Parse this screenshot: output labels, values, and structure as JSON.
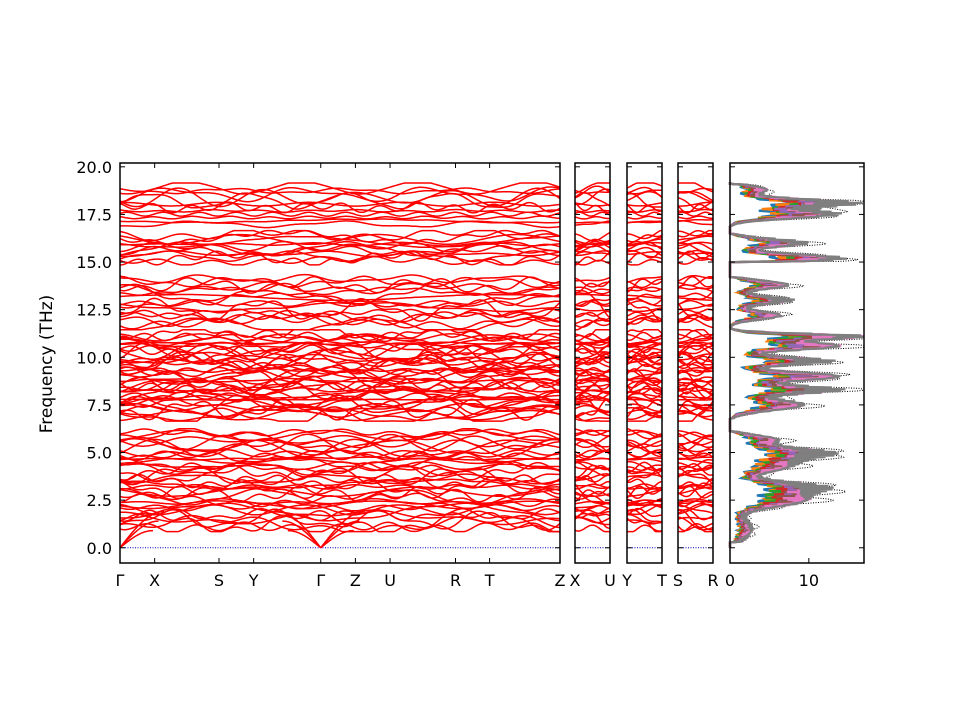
{
  "chart_data": {
    "type": "line",
    "ylabel": "Frequency (THz)",
    "ylim": [
      -0.8,
      20.2
    ],
    "yticks": [
      "0.0",
      "2.5",
      "5.0",
      "7.5",
      "10.0",
      "12.5",
      "15.0",
      "17.5",
      "20.0"
    ],
    "ytick_values": [
      0.0,
      2.5,
      5.0,
      7.5,
      10.0,
      12.5,
      15.0,
      17.5,
      20.0
    ],
    "colors": {
      "bands": "#ff0000",
      "zero_line": "#0000cc",
      "dos_total": "#000000"
    },
    "panels": [
      {
        "segments": 8,
        "xlim": [
          0,
          8
        ],
        "xticks": [
          {
            "label": "Γ",
            "x": 0
          },
          {
            "label": "X",
            "x": 0.63
          },
          {
            "label": "S",
            "x": 1.8
          },
          {
            "label": "Y",
            "x": 2.43
          },
          {
            "label": "Γ",
            "x": 3.65
          },
          {
            "label": "Z",
            "x": 4.28
          },
          {
            "label": "U",
            "x": 4.91
          },
          {
            "label": "R",
            "x": 6.1
          },
          {
            "label": "T",
            "x": 6.72
          },
          {
            "label": "Z",
            "x": 8.0
          }
        ]
      },
      {
        "segments": 1,
        "xlim": [
          0,
          1
        ],
        "xticks": [
          {
            "label": "X",
            "x": 0
          },
          {
            "label": "U",
            "x": 1
          }
        ]
      },
      {
        "segments": 1,
        "xlim": [
          0,
          1
        ],
        "xticks": [
          {
            "label": "Y",
            "x": 0
          },
          {
            "label": "T",
            "x": 1
          }
        ]
      },
      {
        "segments": 1,
        "xlim": [
          0,
          1
        ],
        "xticks": [
          {
            "label": "S",
            "x": 0
          },
          {
            "label": "R",
            "x": 1
          }
        ]
      }
    ],
    "band_groups": [
      {
        "lo": 1.0,
        "hi": 6.1,
        "count": 38
      },
      {
        "lo": 6.8,
        "hi": 11.3,
        "count": 44
      },
      {
        "lo": 11.6,
        "hi": 14.2,
        "count": 16
      },
      {
        "lo": 15.0,
        "hi": 16.5,
        "count": 12
      },
      {
        "lo": 16.9,
        "hi": 19.0,
        "count": 12
      }
    ],
    "dos": {
      "xlim": [
        0,
        17
      ],
      "xticks": [
        "0",
        "10"
      ],
      "xtick_values": [
        0,
        10
      ],
      "series": [
        {
          "color": "#000000",
          "style": "dotted"
        },
        {
          "color": "#1f77b4"
        },
        {
          "color": "#ff7f0e"
        },
        {
          "color": "#2ca02c"
        },
        {
          "color": "#d62728"
        },
        {
          "color": "#9467bd"
        },
        {
          "color": "#8c564b"
        },
        {
          "color": "#e377c2"
        },
        {
          "color": "#7f7f7f"
        }
      ],
      "peaks": [
        {
          "f": 1.0,
          "w": 0.8,
          "a": 3
        },
        {
          "f": 2.5,
          "w": 0.5,
          "a": 10
        },
        {
          "f": 3.2,
          "w": 0.4,
          "a": 11
        },
        {
          "f": 4.3,
          "w": 0.5,
          "a": 8
        },
        {
          "f": 5.0,
          "w": 0.4,
          "a": 12
        },
        {
          "f": 5.7,
          "w": 0.3,
          "a": 6
        },
        {
          "f": 7.5,
          "w": 0.4,
          "a": 10
        },
        {
          "f": 8.3,
          "w": 0.3,
          "a": 14
        },
        {
          "f": 9.0,
          "w": 0.3,
          "a": 15
        },
        {
          "f": 9.8,
          "w": 0.3,
          "a": 13
        },
        {
          "f": 10.6,
          "w": 0.3,
          "a": 15
        },
        {
          "f": 11.1,
          "w": 0.2,
          "a": 17
        },
        {
          "f": 12.2,
          "w": 0.3,
          "a": 7
        },
        {
          "f": 13.0,
          "w": 0.3,
          "a": 8
        },
        {
          "f": 13.8,
          "w": 0.3,
          "a": 8
        },
        {
          "f": 15.2,
          "w": 0.3,
          "a": 15
        },
        {
          "f": 16.0,
          "w": 0.3,
          "a": 10
        },
        {
          "f": 17.5,
          "w": 0.3,
          "a": 14
        },
        {
          "f": 18.1,
          "w": 0.3,
          "a": 16
        },
        {
          "f": 18.8,
          "w": 0.3,
          "a": 5
        }
      ]
    }
  }
}
